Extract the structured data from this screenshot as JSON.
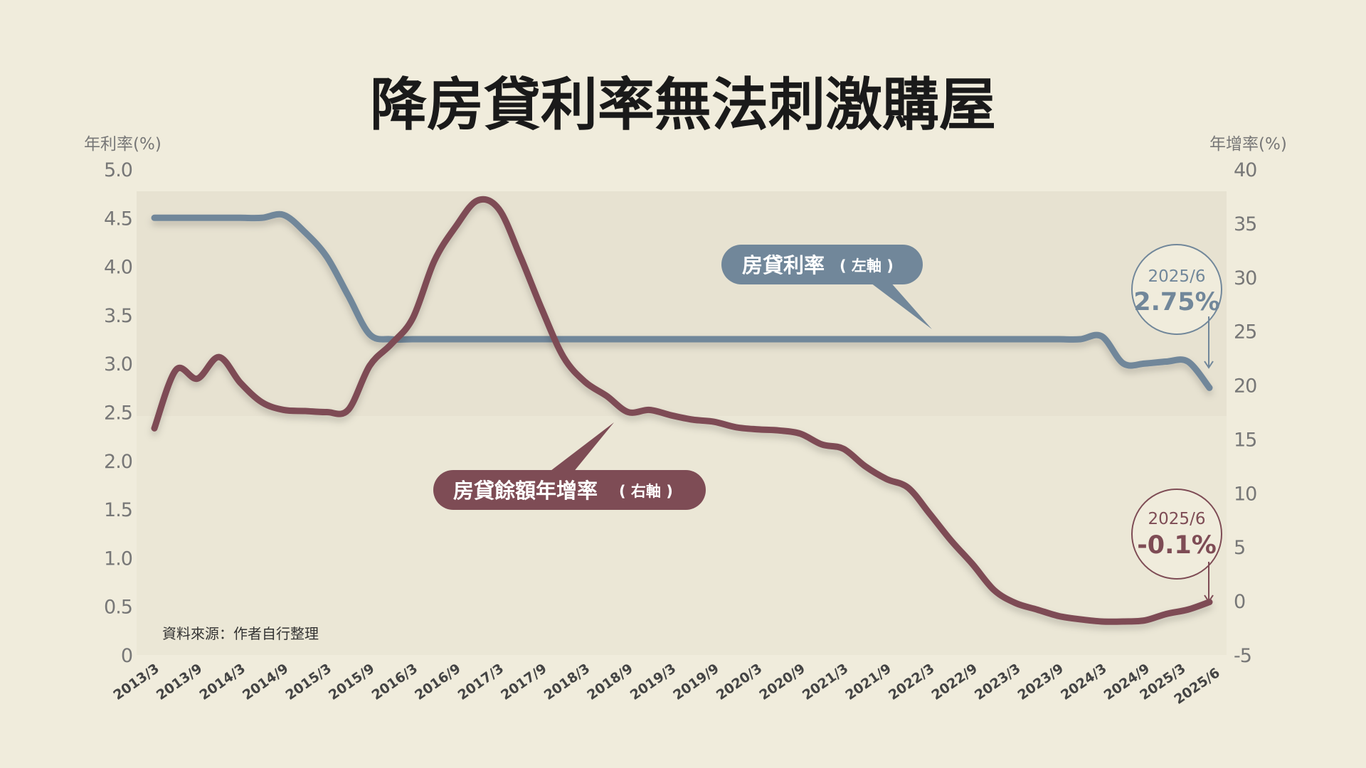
{
  "chart_data": {
    "type": "line",
    "title": "降房貸利率無法刺激購屋",
    "ylabel_left": "年利率(%)",
    "ylabel_right": "年增率(%)",
    "ylim_left": [
      0,
      5
    ],
    "ylim_right": [
      -5,
      40
    ],
    "yticks_left": [
      "0",
      "0.5",
      "1.0",
      "1.5",
      "2.0",
      "2.5",
      "3.0",
      "3.5",
      "4.0",
      "4.5",
      "5.0"
    ],
    "yticks_right": [
      "-5",
      "0",
      "5",
      "10",
      "15",
      "20",
      "25",
      "30",
      "35",
      "40"
    ],
    "xtick_labels": [
      "2013/3",
      "2013/9",
      "2014/3",
      "2014/9",
      "2015/3",
      "2015/9",
      "2016/3",
      "2016/9",
      "2017/3",
      "2017/9",
      "2018/3",
      "2018/9",
      "2019/3",
      "2019/9",
      "2020/3",
      "2020/9",
      "2021/3",
      "2021/9",
      "2022/3",
      "2022/9",
      "2023/3",
      "2023/9",
      "2024/3",
      "2024/9",
      "2025/3",
      "2025/6"
    ],
    "x_frequency": "quarterly 2013/3 - 2025/6",
    "series": [
      {
        "name": "房貸利率",
        "axis_note": "( 左軸 )",
        "axis": "left",
        "color": "#71879a",
        "values": [
          4.5,
          4.5,
          4.5,
          4.5,
          4.5,
          4.5,
          4.53,
          4.35,
          4.1,
          3.7,
          3.3,
          3.25,
          3.25,
          3.25,
          3.25,
          3.25,
          3.25,
          3.25,
          3.25,
          3.25,
          3.25,
          3.25,
          3.25,
          3.25,
          3.25,
          3.25,
          3.25,
          3.25,
          3.25,
          3.25,
          3.25,
          3.25,
          3.25,
          3.25,
          3.25,
          3.25,
          3.25,
          3.25,
          3.25,
          3.25,
          3.25,
          3.25,
          3.25,
          3.25,
          3.28,
          3.0,
          3.0,
          3.02,
          3.02,
          2.75
        ]
      },
      {
        "name": "房貸餘額年增率",
        "axis_note": "( 右軸 )",
        "axis": "right",
        "color": "#7e4c55",
        "values": [
          16.0,
          21.4,
          20.6,
          22.6,
          20.2,
          18.4,
          17.7,
          17.6,
          17.5,
          17.7,
          21.8,
          23.8,
          26.2,
          31.5,
          34.7,
          37.1,
          36.3,
          31.9,
          27.0,
          22.6,
          20.3,
          19.0,
          17.5,
          17.7,
          17.2,
          16.8,
          16.6,
          16.1,
          15.9,
          15.8,
          15.5,
          14.5,
          14.1,
          12.5,
          11.3,
          10.5,
          8.1,
          5.6,
          3.4,
          1.0,
          -0.2,
          -0.8,
          -1.4,
          -1.7,
          -1.9,
          -1.9,
          -1.8,
          -1.2,
          -0.8,
          -0.1
        ]
      }
    ],
    "annotations": [
      {
        "date": "2025/6",
        "value": "2.75%",
        "color": "#71879a"
      },
      {
        "date": "2025/6",
        "value": "-0.1%",
        "color": "#7e4c55"
      }
    ],
    "source": "資料來源：作者自行整理"
  }
}
